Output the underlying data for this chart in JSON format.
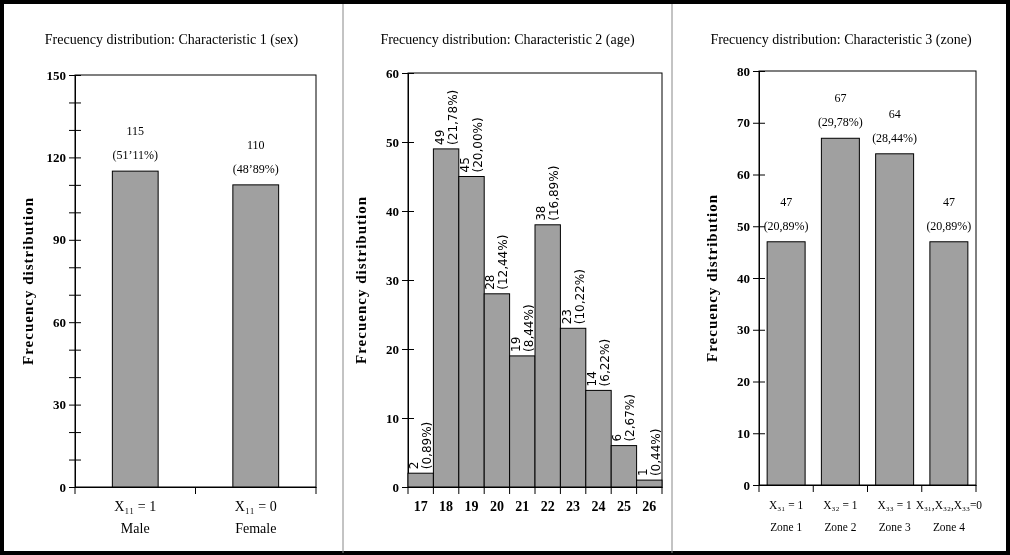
{
  "chart_data": [
    {
      "type": "bar",
      "title": "Frecuency distribution: Characteristic 1 (sex)",
      "ylabel": "Frecuency distribution",
      "categories": [
        "X₁₁ = 1\nMale",
        "X₁₁ = 0\nFemale"
      ],
      "values": [
        115,
        110
      ],
      "color": "#a0a0a0",
      "ylim": [
        0,
        150
      ],
      "yticks": [
        0,
        {
          "value": 10,
          "label": null
        },
        {
          "value": 20,
          "label": null
        },
        30,
        {
          "value": 40,
          "label": null
        },
        {
          "value": 50,
          "label": null
        },
        60,
        {
          "value": 70,
          "label": null
        },
        {
          "value": 80,
          "label": null
        },
        90,
        {
          "value": 100,
          "label": null
        },
        {
          "value": 110,
          "label": null
        },
        120,
        {
          "value": 130,
          "label": null
        },
        {
          "value": 140,
          "label": null
        },
        150
      ],
      "value_labels": [
        "115\n(51’11%)",
        "110\n(48’89%)"
      ]
    },
    {
      "type": "bar",
      "title": "Frecuency distribution: Characteristic 2 (age)",
      "ylabel": "Frecuency distribution",
      "categories": [
        "17",
        "18",
        "19",
        "20",
        "21",
        "22",
        "23",
        "24",
        "25",
        "26"
      ],
      "values": [
        2,
        49,
        45,
        28,
        19,
        38,
        23,
        14,
        6,
        1
      ],
      "color": "#a0a0a0",
      "ylim": [
        0,
        60
      ],
      "yticks": [
        0,
        10,
        20,
        30,
        40,
        50,
        60
      ],
      "value_labels": [
        "2\n(0,89%)",
        "49\n(21,78%)",
        "45\n(20,00%)",
        "28\n(12,44%)",
        "19\n(8,44%)",
        "38\n(16,89%)",
        "23\n(10,22%)",
        "14\n(6,22%)",
        "6\n(2,67%)",
        "1\n(0,44%)"
      ]
    },
    {
      "type": "bar",
      "title": "Frecuency distribution: Characteristic 3 (zone)",
      "ylabel": "Frecuency distribution",
      "categories": [
        "X₃₁ = 1\nZone 1",
        "X₃₂ = 1\nZone 2",
        "X₃₃ = 1\nZone 3",
        "X₃₁,X₃₂,X₃₃=0\nZone 4"
      ],
      "values": [
        47,
        67,
        64,
        47
      ],
      "color": "#a0a0a0",
      "ylim": [
        0,
        80
      ],
      "yticks": [
        0,
        10,
        20,
        30,
        40,
        50,
        60,
        70,
        80
      ],
      "value_labels": [
        "47\n(20,89%)",
        "67\n(29,78%)",
        "64\n(28,44%)",
        "47\n(20,89%)"
      ]
    }
  ]
}
